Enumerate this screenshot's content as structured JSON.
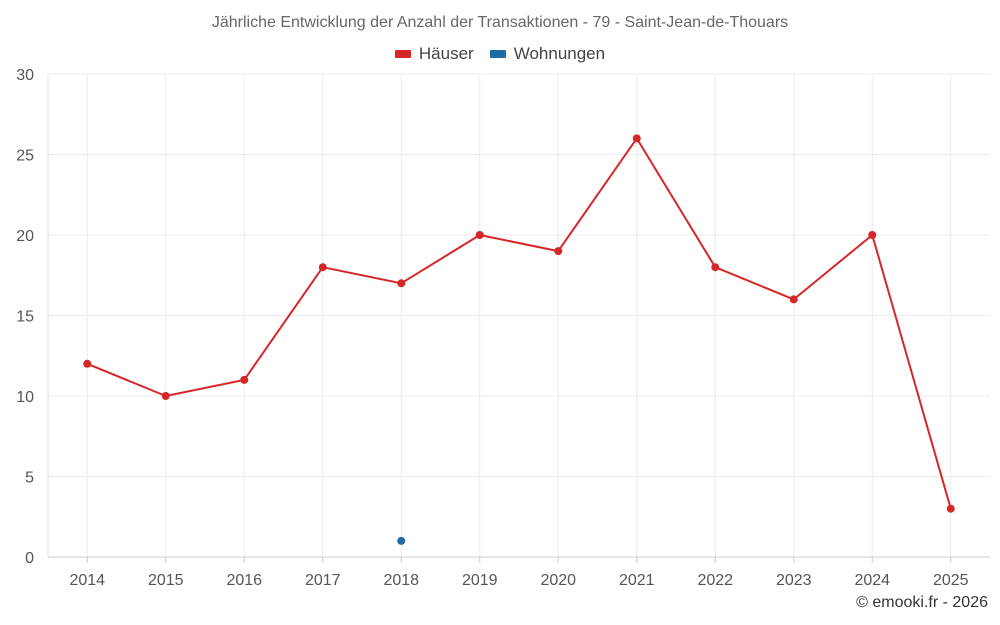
{
  "chart_data": {
    "type": "line",
    "title": "Jährliche Entwicklung der Anzahl der Transaktionen - 79 - Saint-Jean-de-Thouars",
    "categories": [
      "2014",
      "2015",
      "2016",
      "2017",
      "2018",
      "2019",
      "2020",
      "2021",
      "2022",
      "2023",
      "2024",
      "2025"
    ],
    "series": [
      {
        "name": "Häuser",
        "color": "#d62728",
        "values": [
          12,
          10,
          11,
          18,
          17,
          20,
          19,
          26,
          18,
          16,
          20,
          3
        ]
      },
      {
        "name": "Wohnungen",
        "color": "#1f6ba5",
        "values": [
          null,
          null,
          null,
          null,
          1,
          null,
          null,
          null,
          null,
          null,
          null,
          null
        ]
      }
    ],
    "ylim": [
      0,
      30
    ],
    "yticks": [
      "0",
      "5",
      "10",
      "15",
      "20",
      "25",
      "30"
    ],
    "legend_position": "top-center",
    "grid": true
  },
  "credit": "© emooki.fr - 2026"
}
